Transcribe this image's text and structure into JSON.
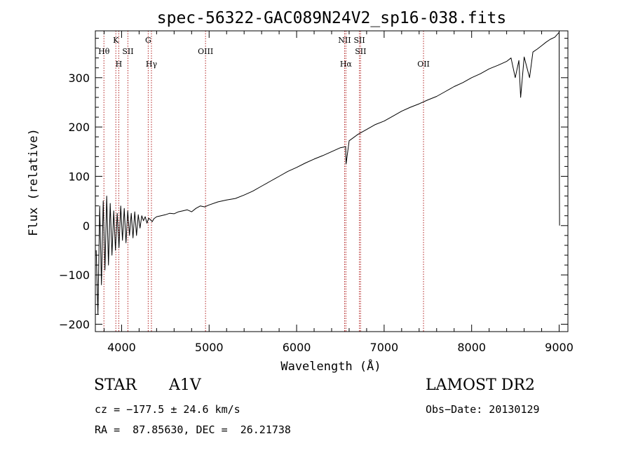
{
  "chart_data": {
    "type": "line",
    "title": "spec-56322-GAC089N24V2_sp16-038.fits",
    "xlabel": "Wavelength (Å)",
    "ylabel": "Flux (relative)",
    "xlim": [
      3700,
      9100
    ],
    "ylim": [
      -215,
      395
    ],
    "xticks": [
      4000,
      5000,
      6000,
      7000,
      8000,
      9000
    ],
    "yticks": [
      -200,
      -100,
      0,
      100,
      200,
      300
    ],
    "xtick_labels": [
      "4000",
      "5000",
      "6000",
      "7000",
      "8000",
      "9000"
    ],
    "ytick_labels": [
      "−200",
      "−100",
      "0",
      "100",
      "200",
      "300"
    ],
    "grid": false,
    "spectrum": {
      "x": [
        3710,
        3730,
        3750,
        3770,
        3790,
        3810,
        3830,
        3850,
        3870,
        3890,
        3910,
        3930,
        3950,
        3970,
        3990,
        4010,
        4030,
        4050,
        4070,
        4090,
        4110,
        4130,
        4150,
        4170,
        4190,
        4210,
        4230,
        4250,
        4270,
        4290,
        4310,
        4330,
        4350,
        4370,
        4400,
        4450,
        4500,
        4550,
        4600,
        4650,
        4700,
        4750,
        4800,
        4850,
        4900,
        4950,
        5000,
        5100,
        5200,
        5300,
        5400,
        5500,
        5600,
        5700,
        5800,
        5900,
        6000,
        6100,
        6200,
        6300,
        6400,
        6500,
        6560,
        6565,
        6600,
        6700,
        6800,
        6900,
        7000,
        7100,
        7200,
        7300,
        7400,
        7500,
        7600,
        7700,
        7800,
        7900,
        8000,
        8100,
        8200,
        8300,
        8400,
        8450,
        8498,
        8540,
        8560,
        8600,
        8662,
        8700,
        8750,
        8800,
        8850,
        8900,
        8950,
        8980,
        9000,
        9002,
        9005
      ],
      "y": [
        -50,
        -180,
        40,
        -120,
        50,
        -90,
        60,
        -80,
        45,
        -60,
        30,
        -50,
        25,
        -45,
        40,
        -30,
        35,
        -35,
        30,
        -20,
        25,
        -25,
        28,
        -20,
        22,
        -5,
        20,
        10,
        18,
        5,
        15,
        12,
        8,
        14,
        18,
        20,
        22,
        25,
        24,
        28,
        30,
        32,
        28,
        35,
        40,
        38,
        42,
        48,
        52,
        55,
        62,
        70,
        80,
        90,
        100,
        110,
        118,
        127,
        135,
        142,
        150,
        158,
        160,
        125,
        172,
        185,
        195,
        205,
        212,
        222,
        232,
        240,
        247,
        255,
        262,
        272,
        282,
        290,
        300,
        308,
        318,
        325,
        333,
        340,
        300,
        335,
        260,
        342,
        300,
        352,
        358,
        365,
        372,
        378,
        382,
        388,
        392,
        120,
        0
      ]
    },
    "lines": [
      {
        "label": "Hθ",
        "x": 3798,
        "row": 1
      },
      {
        "label": "K",
        "x": 3934,
        "row": 0
      },
      {
        "label": "H",
        "x": 3968,
        "row": 2
      },
      {
        "label": "SII",
        "x": 4072,
        "row": 1
      },
      {
        "label": "G",
        "x": 4304,
        "row": 0
      },
      {
        "label": "Hγ",
        "x": 4341,
        "row": 2
      },
      {
        "label": "OIII",
        "x": 4959,
        "row": 1
      },
      {
        "label": "NII",
        "x": 6548,
        "row": 0
      },
      {
        "label": "Hα",
        "x": 6563,
        "row": 2
      },
      {
        "label": "SII",
        "x": 6717,
        "row": 0
      },
      {
        "label": "SII",
        "x": 6731,
        "row": 1
      },
      {
        "label": "OII",
        "x": 7450,
        "row": 2
      }
    ],
    "line_color": "#b22222"
  },
  "info": {
    "class": "STAR",
    "subclass": "A1V",
    "survey": "LAMOST DR2",
    "cz": "cz = −177.5 ± 24.6 km/s",
    "obs_date": "Obs−Date: 20130129",
    "coords": "RA =  87.85630, DEC =  26.21738"
  }
}
